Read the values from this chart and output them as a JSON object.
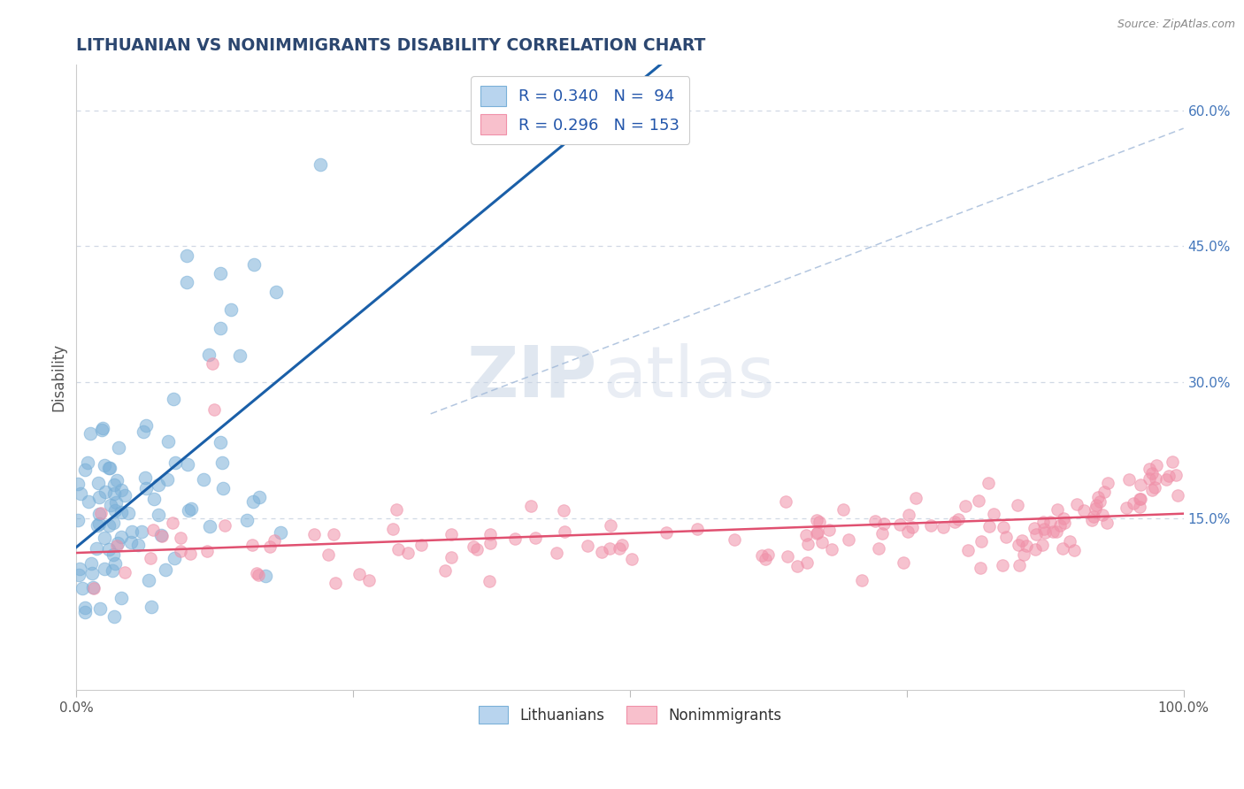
{
  "title": "LITHUANIAN VS NONIMMIGRANTS DISABILITY CORRELATION CHART",
  "source": "Source: ZipAtlas.com",
  "ylabel": "Disability",
  "xlabel": "",
  "watermark_zip": "ZIP",
  "watermark_atlas": "atlas",
  "legend_entries": [
    {
      "label": "Lithuanians",
      "color": "#7ab0d8",
      "R": 0.34,
      "N": 94
    },
    {
      "label": "Nonimmigrants",
      "color": "#f090a8",
      "R": 0.296,
      "N": 153
    }
  ],
  "right_yticks": [
    0.15,
    0.3,
    0.45,
    0.6
  ],
  "right_yticklabels": [
    "15.0%",
    "30.0%",
    "45.0%",
    "60.0%"
  ],
  "xlim": [
    0.0,
    1.0
  ],
  "ylim": [
    -0.04,
    0.65
  ],
  "title_color": "#2c4770",
  "grid_color": "#d0d8e4",
  "blue_scatter_color": "#7ab0d8",
  "blue_line_color": "#1a5fa8",
  "pink_scatter_color": "#f090a8",
  "pink_line_color": "#e05070",
  "diag_color": "#a0b8d8",
  "seed": 7
}
